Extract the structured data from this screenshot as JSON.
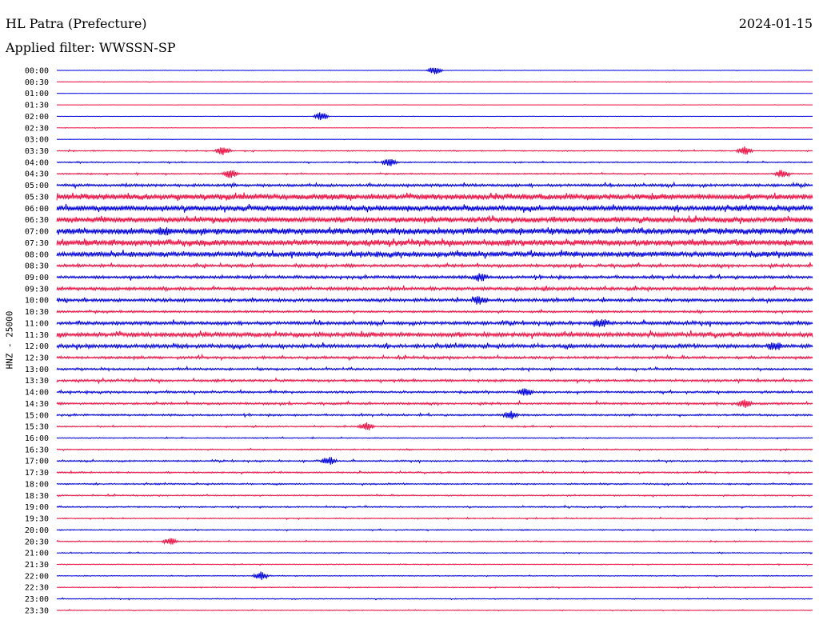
{
  "header": {
    "station": "HL Patra (Prefecture)",
    "date": "2024-01-15",
    "filter": "Applied filter: WWSSN-SP"
  },
  "colors": {
    "odd_trace": "#0000dd",
    "even_trace": "#ee1144"
  },
  "chart_data": {
    "type": "line",
    "title": "HL Patra (Prefecture)",
    "subtitle": "Applied filter: WWSSN-SP",
    "ylabel": "HNZ - 25000",
    "xlabel": "",
    "grid": false,
    "legend": "none",
    "series": [
      {
        "tick": "00:00",
        "activity": 0.04,
        "events": [
          0.5
        ]
      },
      {
        "tick": "00:30",
        "activity": 0.06,
        "events": []
      },
      {
        "tick": "01:00",
        "activity": 0.03,
        "events": []
      },
      {
        "tick": "01:30",
        "activity": 0.03,
        "events": []
      },
      {
        "tick": "02:00",
        "activity": 0.04,
        "events": [
          0.35
        ]
      },
      {
        "tick": "02:30",
        "activity": 0.05,
        "events": []
      },
      {
        "tick": "03:00",
        "activity": 0.05,
        "events": []
      },
      {
        "tick": "03:30",
        "activity": 0.12,
        "events": [
          0.22,
          0.91
        ]
      },
      {
        "tick": "04:00",
        "activity": 0.14,
        "events": [
          0.44
        ]
      },
      {
        "tick": "04:30",
        "activity": 0.16,
        "events": [
          0.23,
          0.96
        ]
      },
      {
        "tick": "05:00",
        "activity": 0.32,
        "events": []
      },
      {
        "tick": "05:30",
        "activity": 0.72,
        "events": []
      },
      {
        "tick": "06:00",
        "activity": 0.68,
        "events": []
      },
      {
        "tick": "06:30",
        "activity": 0.7,
        "events": []
      },
      {
        "tick": "07:00",
        "activity": 0.8,
        "events": [
          0.14
        ]
      },
      {
        "tick": "07:30",
        "activity": 0.78,
        "events": []
      },
      {
        "tick": "08:00",
        "activity": 0.66,
        "events": []
      },
      {
        "tick": "08:30",
        "activity": 0.36,
        "events": []
      },
      {
        "tick": "09:00",
        "activity": 0.35,
        "events": [
          0.56
        ]
      },
      {
        "tick": "09:30",
        "activity": 0.4,
        "events": []
      },
      {
        "tick": "10:00",
        "activity": 0.38,
        "events": [
          0.56
        ]
      },
      {
        "tick": "10:30",
        "activity": 0.25,
        "events": []
      },
      {
        "tick": "11:00",
        "activity": 0.4,
        "events": [
          0.72
        ]
      },
      {
        "tick": "11:30",
        "activity": 0.55,
        "events": []
      },
      {
        "tick": "12:00",
        "activity": 0.45,
        "events": [
          0.95
        ]
      },
      {
        "tick": "12:30",
        "activity": 0.3,
        "events": []
      },
      {
        "tick": "13:00",
        "activity": 0.25,
        "events": []
      },
      {
        "tick": "13:30",
        "activity": 0.28,
        "events": []
      },
      {
        "tick": "14:00",
        "activity": 0.24,
        "events": [
          0.62
        ]
      },
      {
        "tick": "14:30",
        "activity": 0.26,
        "events": [
          0.91
        ]
      },
      {
        "tick": "15:00",
        "activity": 0.22,
        "events": [
          0.6
        ]
      },
      {
        "tick": "15:30",
        "activity": 0.15,
        "events": [
          0.41
        ]
      },
      {
        "tick": "16:00",
        "activity": 0.12,
        "events": []
      },
      {
        "tick": "16:30",
        "activity": 0.14,
        "events": []
      },
      {
        "tick": "17:00",
        "activity": 0.18,
        "events": [
          0.36
        ]
      },
      {
        "tick": "17:30",
        "activity": 0.18,
        "events": []
      },
      {
        "tick": "18:00",
        "activity": 0.16,
        "events": []
      },
      {
        "tick": "18:30",
        "activity": 0.14,
        "events": []
      },
      {
        "tick": "19:00",
        "activity": 0.16,
        "events": []
      },
      {
        "tick": "19:30",
        "activity": 0.12,
        "events": []
      },
      {
        "tick": "20:00",
        "activity": 0.13,
        "events": []
      },
      {
        "tick": "20:30",
        "activity": 0.12,
        "events": [
          0.15
        ]
      },
      {
        "tick": "21:00",
        "activity": 0.11,
        "events": []
      },
      {
        "tick": "21:30",
        "activity": 0.1,
        "events": []
      },
      {
        "tick": "22:00",
        "activity": 0.1,
        "events": [
          0.27
        ]
      },
      {
        "tick": "22:30",
        "activity": 0.1,
        "events": []
      },
      {
        "tick": "23:00",
        "activity": 0.1,
        "events": []
      },
      {
        "tick": "23:30",
        "activity": 0.09,
        "events": []
      }
    ]
  }
}
